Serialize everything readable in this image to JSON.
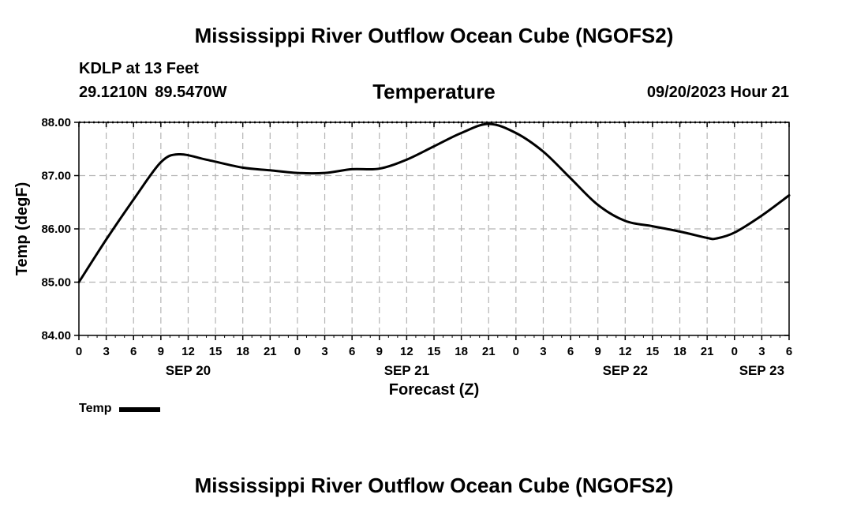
{
  "header": {
    "main_title": "Mississippi River Outflow Ocean Cube (NGOFS2)",
    "station": "KDLP at 13 Feet",
    "coordinates": "29.1210N  89.5470W",
    "datetime": "09/20/2023 Hour 21"
  },
  "footer": {
    "title": "Mississippi River Outflow Ocean Cube (NGOFS2)"
  },
  "legend": {
    "label": "Temp"
  },
  "colors": {
    "line": "#000000",
    "grid": "#b4b4b4"
  },
  "chart_data": {
    "type": "line",
    "title": "Temperature",
    "xlabel": "Forecast (Z)",
    "ylabel": "Temp (degF)",
    "ylim": [
      84.0,
      88.0
    ],
    "xlim": [
      0,
      78
    ],
    "y_ticks": [
      "84.00",
      "85.00",
      "86.00",
      "87.00",
      "88.00"
    ],
    "y_tick_values": [
      84,
      85,
      86,
      87,
      88
    ],
    "x_tick_labels": [
      "0",
      "3",
      "6",
      "9",
      "12",
      "15",
      "18",
      "21",
      "0",
      "3",
      "6",
      "9",
      "12",
      "15",
      "18",
      "21",
      "0",
      "3",
      "6",
      "9",
      "12",
      "15",
      "18",
      "21",
      "0",
      "3",
      "6"
    ],
    "date_labels": [
      {
        "label": "SEP 20",
        "hour": 12
      },
      {
        "label": "SEP 21",
        "hour": 36
      },
      {
        "label": "SEP 22",
        "hour": 60
      },
      {
        "label": "SEP 23",
        "hour": 75
      }
    ],
    "grid": true,
    "legend_position": "bottom-left",
    "series": [
      {
        "name": "Temp",
        "x": [
          0,
          3,
          6,
          9,
          11,
          14,
          18,
          21,
          24,
          27,
          30,
          33,
          36,
          39,
          42,
          45,
          48,
          51,
          54,
          57,
          60,
          63,
          66,
          69,
          70,
          72,
          75,
          78
        ],
        "y": [
          85.0,
          85.8,
          86.55,
          87.25,
          87.4,
          87.3,
          87.15,
          87.1,
          87.05,
          87.05,
          87.12,
          87.13,
          87.3,
          87.55,
          87.8,
          87.97,
          87.8,
          87.45,
          86.95,
          86.45,
          86.15,
          86.05,
          85.95,
          85.83,
          85.82,
          85.93,
          86.25,
          86.63
        ]
      }
    ]
  }
}
